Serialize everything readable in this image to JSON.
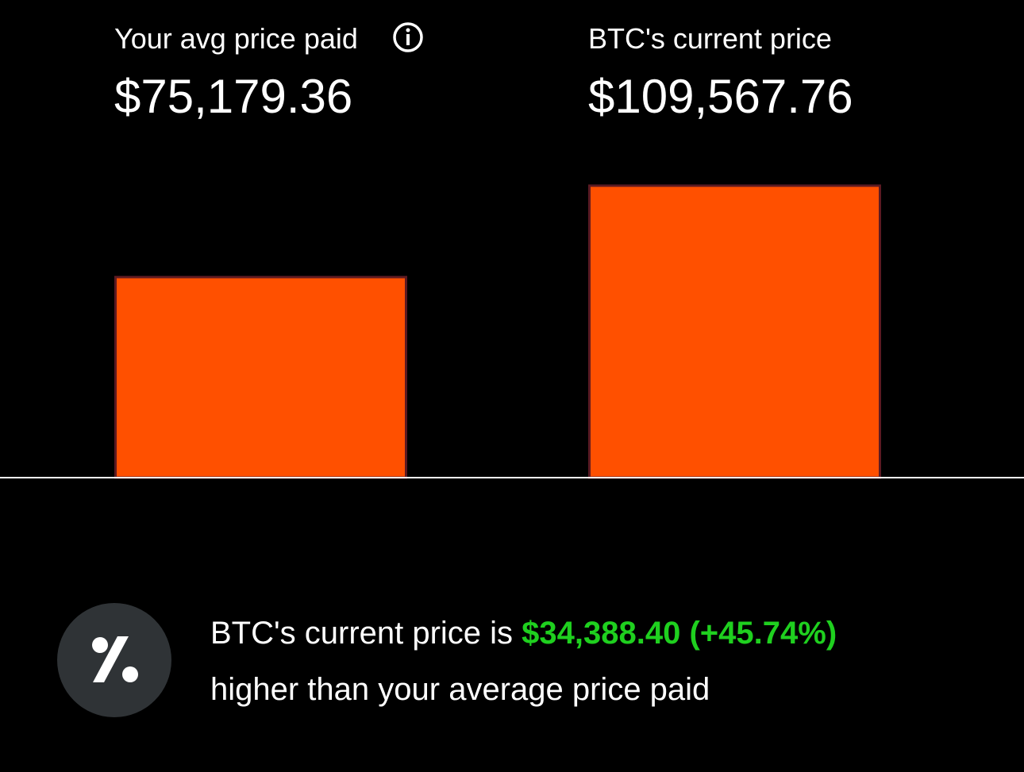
{
  "chart_data": {
    "type": "bar",
    "categories": [
      "Your avg price paid",
      "BTC's current price"
    ],
    "values": [
      75179.36,
      109567.76
    ],
    "value_labels": [
      "$75,179.36",
      "$109,567.76"
    ],
    "color": "#ff5000"
  },
  "message": {
    "text_before": "BTC's current price is ",
    "highlight": "$34,388.40 (+45.74%)",
    "text_after": "higher than your average price paid"
  }
}
